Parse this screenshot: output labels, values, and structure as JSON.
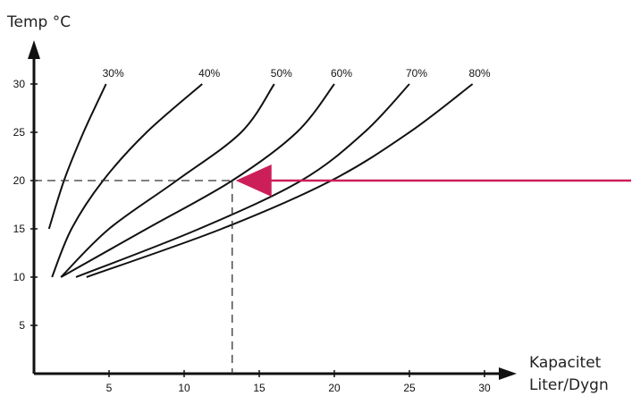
{
  "chart_data": {
    "type": "line",
    "ylabel": "Temp °C",
    "xlabel_lines": [
      "Kapacitet",
      "Liter/Dygn"
    ],
    "xlim": [
      0,
      30.5
    ],
    "ylim": [
      0,
      31
    ],
    "xticks": [
      5,
      10,
      15,
      20,
      25,
      30
    ],
    "yticks": [
      5,
      10,
      15,
      20,
      25,
      30
    ],
    "x_tick_labels": [
      "5",
      "10",
      "15",
      "20",
      "25",
      "30"
    ],
    "y_tick_labels": [
      "5",
      "10",
      "15",
      "20",
      "25",
      "30"
    ],
    "series": [
      {
        "name": "30%",
        "points": [
          [
            1.0,
            15.0
          ],
          [
            2.0,
            20.0
          ],
          [
            3.3,
            25.0
          ],
          [
            4.8,
            30.0
          ]
        ]
      },
      {
        "name": "40%",
        "points": [
          [
            1.2,
            10.0
          ],
          [
            2.5,
            15.0
          ],
          [
            4.6,
            20.0
          ],
          [
            7.5,
            25.0
          ],
          [
            11.2,
            30.0
          ]
        ]
      },
      {
        "name": "50%",
        "points": [
          [
            1.8,
            10.0
          ],
          [
            5.0,
            15.0
          ],
          [
            9.5,
            20.0
          ],
          [
            13.8,
            25.0
          ],
          [
            16.0,
            30.0
          ]
        ]
      },
      {
        "name": "60%",
        "points": [
          [
            1.8,
            10.0
          ],
          [
            7.5,
            15.0
          ],
          [
            13.2,
            20.0
          ],
          [
            17.5,
            25.0
          ],
          [
            20.0,
            30.0
          ]
        ]
      },
      {
        "name": "70%",
        "points": [
          [
            2.8,
            10.0
          ],
          [
            11.0,
            15.0
          ],
          [
            17.8,
            20.0
          ],
          [
            22.0,
            25.0
          ],
          [
            25.0,
            30.0
          ]
        ]
      },
      {
        "name": "80%",
        "points": [
          [
            3.5,
            10.0
          ],
          [
            12.5,
            15.0
          ],
          [
            19.8,
            20.0
          ],
          [
            25.0,
            25.0
          ],
          [
            29.2,
            30.0
          ]
        ]
      }
    ],
    "reference": {
      "x": 13.2,
      "y": 20
    },
    "colors": {
      "axis": "#111111",
      "curve": "#111111",
      "arrow": "#cc1f5a",
      "dashed": "#333333"
    }
  }
}
